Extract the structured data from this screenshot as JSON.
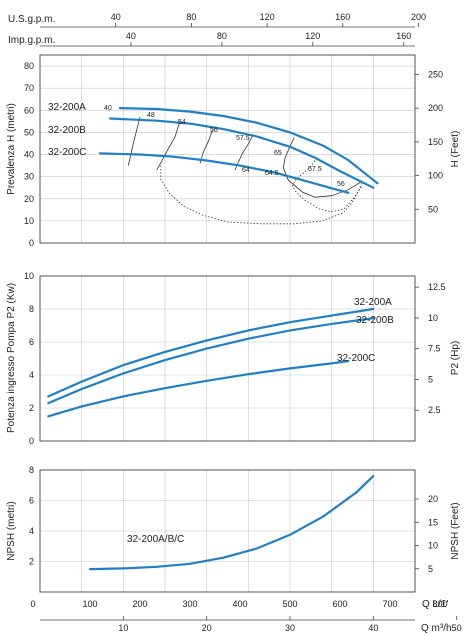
{
  "chart_data": [
    {
      "type": "line",
      "id": "head",
      "ylabel_left": "Prevalenza H (metri)",
      "ylabel_right": "H (Feet)",
      "xlim": [
        0,
        45
      ],
      "ylim": [
        0,
        85
      ],
      "yticks": [
        0,
        10,
        20,
        30,
        40,
        50,
        60,
        70,
        80
      ],
      "yticks_right": [
        50,
        100,
        150,
        200,
        250
      ],
      "top_axes": [
        {
          "label": "U.S.g.p.m.",
          "ticks": [
            40,
            80,
            120,
            160,
            200
          ]
        },
        {
          "label": "Imp.g.p.m.",
          "ticks": [
            40,
            80,
            120,
            160
          ]
        }
      ],
      "series": [
        {
          "name": "32-200A",
          "x": [
            9.6,
            14,
            18,
            22,
            26,
            30,
            34,
            37,
            40.5
          ],
          "y": [
            61,
            60.6,
            59.4,
            57.4,
            54.4,
            50,
            44,
            37.5,
            27
          ]
        },
        {
          "name": "32-200B",
          "x": [
            8.4,
            14,
            18,
            22,
            26,
            30,
            33,
            36,
            40
          ],
          "y": [
            56.3,
            55.3,
            54,
            51.5,
            48.2,
            43.5,
            38.5,
            32.5,
            25
          ]
        },
        {
          "name": "32-200C",
          "x": [
            7.2,
            12,
            16,
            20,
            24,
            28,
            31,
            34,
            37
          ],
          "y": [
            40.5,
            40,
            39,
            37.3,
            35,
            32,
            29,
            25.8,
            22.7
          ]
        }
      ],
      "efficiency_labels": [
        "40",
        "48",
        "54",
        "56",
        "57.5",
        "65",
        "64",
        "64.5",
        "57.5",
        "56"
      ],
      "efficiency_curves": [
        {
          "x": [
            12,
            11.2,
            10.6
          ],
          "y": [
            57,
            45,
            35
          ]
        },
        {
          "x": [
            16.8,
            16.2,
            15.3,
            14.6,
            14
          ],
          "y": [
            55,
            48,
            42,
            37,
            33
          ]
        },
        {
          "x": [
            20.7,
            20.2,
            19.6,
            19.2
          ],
          "y": [
            51,
            46,
            41,
            36
          ]
        },
        {
          "x": [
            25.5,
            25,
            24.3,
            23.8,
            23.4
          ],
          "y": [
            48.5,
            44.7,
            40.6,
            36.5,
            33
          ]
        },
        {
          "x": [
            30.5,
            30,
            29.4,
            29.2,
            29.8,
            31.5,
            33,
            35,
            37,
            38.6
          ],
          "y": [
            47.7,
            43.8,
            38.4,
            34,
            28.4,
            23,
            20.7,
            21.4,
            24.1,
            27.8
          ]
        },
        {
          "x": [
            33.2,
            32.5,
            31.5,
            30.7,
            30.3,
            30.6,
            31.8,
            33.5,
            35,
            36.5,
            37.7,
            38.6
          ],
          "y": [
            38.4,
            34.6,
            31.3,
            28.6,
            26,
            23.6,
            19.3,
            15.4,
            14.1,
            15.4,
            20.7,
            25.5
          ]
        },
        {
          "x": [
            14.5,
            14.5,
            15.5,
            17.2,
            19.5,
            22.5,
            26.5,
            30.5,
            34,
            36.4,
            37.4,
            38.1,
            38.6
          ],
          "y": [
            35,
            28.8,
            22.6,
            16.7,
            12.6,
            9.5,
            8.7,
            8.7,
            10.1,
            13.7,
            18,
            22.6,
            27
          ]
        }
      ]
    },
    {
      "type": "line",
      "id": "power",
      "ylabel_left": "Potenza ingresso Pompa P2 (Kw)",
      "ylabel_right": "P2 (Hp)",
      "xlim": [
        0,
        45
      ],
      "ylim": [
        0,
        10
      ],
      "yticks": [
        0,
        2,
        4,
        6,
        8,
        10
      ],
      "yticks_right": [
        2.5,
        5,
        7.5,
        10,
        12.5
      ],
      "series": [
        {
          "name": "32-200A",
          "x": [
            1,
            5,
            10,
            15,
            20,
            25,
            30,
            35,
            40
          ],
          "y": [
            2.7,
            3.6,
            4.6,
            5.4,
            6.1,
            6.7,
            7.2,
            7.6,
            8
          ]
        },
        {
          "name": "32-200B",
          "x": [
            1,
            5,
            10,
            15,
            20,
            25,
            30,
            35,
            40
          ],
          "y": [
            2.3,
            3.15,
            4.1,
            4.9,
            5.6,
            6.2,
            6.7,
            7.1,
            7.45
          ]
        },
        {
          "name": "32-200C",
          "x": [
            1,
            5,
            10,
            15,
            20,
            25,
            30,
            35,
            37
          ],
          "y": [
            1.5,
            2.1,
            2.7,
            3.2,
            3.65,
            4.05,
            4.4,
            4.7,
            4.85
          ]
        }
      ]
    },
    {
      "type": "line",
      "id": "npsh",
      "ylabel_left": "NPSH (metri)",
      "ylabel_right": "NPSH (Feet)",
      "xlim": [
        0,
        45
      ],
      "ylim": [
        0,
        8
      ],
      "yticks": [
        2,
        4,
        6,
        8
      ],
      "yticks_right": [
        5,
        10,
        15,
        20
      ],
      "series": [
        {
          "name": "32-200A/B/C",
          "x": [
            6,
            10,
            14,
            18,
            22,
            26,
            30,
            34,
            38,
            40
          ],
          "y": [
            1.5,
            1.55,
            1.65,
            1.85,
            2.25,
            2.85,
            3.75,
            4.95,
            6.55,
            7.6
          ]
        }
      ]
    }
  ],
  "bottom_axes": {
    "flow_ls": {
      "unit": "Q  L/1'",
      "ticks": [
        0,
        100,
        200,
        300,
        400,
        500,
        600,
        700,
        800
      ]
    },
    "flow_m3h": {
      "unit": "Q  m³/h",
      "ticks": [
        10,
        20,
        30,
        40,
        50
      ]
    }
  }
}
